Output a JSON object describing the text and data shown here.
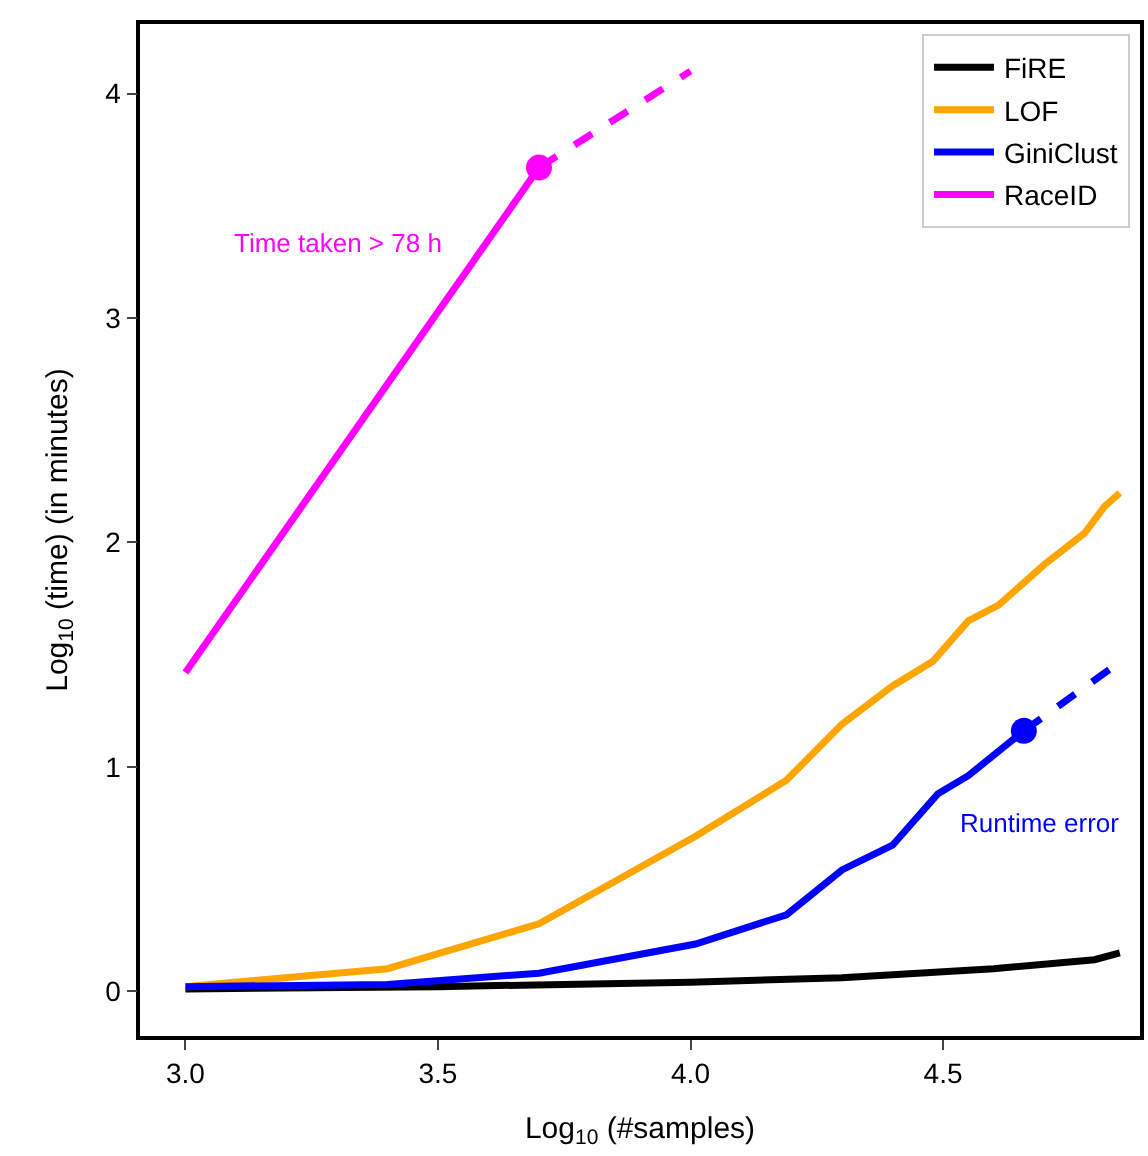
{
  "chart_data": {
    "type": "line",
    "xlabel": "Log$_{10}$ (#samples)",
    "ylabel": "Log$_{10}$ (time) (in minutes)",
    "xlim": [
      2.91,
      4.89
    ],
    "ylim": [
      -0.2,
      4.31
    ],
    "xticks": [
      {
        "value": 3,
        "label": "3.0"
      },
      3.5,
      {
        "value": 4,
        "label": "4.0"
      },
      4.5
    ],
    "yticks": [
      0,
      1,
      2,
      3,
      4
    ],
    "legend": "top right",
    "marker": "none",
    "series": [
      {
        "name": "FiRE",
        "color": "#000000",
        "line_style": "solid",
        "x": [
          3.0,
          3.5,
          4.0,
          4.3,
          4.6,
          4.8,
          4.85
        ],
        "values": [
          0.01,
          0.02,
          0.04,
          0.06,
          0.1,
          0.14,
          0.17
        ]
      },
      {
        "name": "LOF",
        "color": "#ffa500",
        "line_style": "solid",
        "x": [
          3.0,
          3.4,
          3.7,
          4.01,
          4.19,
          4.3,
          4.4,
          4.48,
          4.55,
          4.61,
          4.7,
          4.78,
          4.82,
          4.85
        ],
        "values": [
          0.02,
          0.1,
          0.3,
          0.69,
          0.94,
          1.19,
          1.36,
          1.47,
          1.65,
          1.72,
          1.9,
          2.04,
          2.16,
          2.22
        ]
      },
      {
        "name": "GiniClust",
        "color": "#0000ff",
        "line_style": "solid",
        "x": [
          3.0,
          3.4,
          3.7,
          4.01,
          4.19,
          4.3,
          4.4,
          4.49,
          4.55,
          4.66
        ],
        "values": [
          0.02,
          0.03,
          0.08,
          0.21,
          0.34,
          0.54,
          0.65,
          0.88,
          0.96,
          1.16
        ]
      },
      {
        "color": "#0000ff",
        "line_style": "dashed",
        "x": [
          4.66,
          4.84
        ],
        "values": [
          1.16,
          1.45
        ]
      },
      {
        "type": "scatter",
        "marker": "circle",
        "color": "#0000ff",
        "x": [
          4.66
        ],
        "values": [
          1.16
        ]
      },
      {
        "name": "RaceID",
        "color": "#ff00ff",
        "line_style": "solid",
        "x": [
          3.0,
          3.7
        ],
        "values": [
          1.42,
          3.67
        ]
      },
      {
        "color": "#ff00ff",
        "line_style": "dashed",
        "x": [
          3.7,
          4.0
        ],
        "values": [
          3.67,
          4.1
        ]
      },
      {
        "type": "scatter",
        "marker": "circle",
        "color": "#ff00ff",
        "x": [
          3.7
        ],
        "values": [
          3.67
        ]
      }
    ],
    "annotations": [
      "Time taken > 78 h",
      "Runtime error"
    ]
  }
}
